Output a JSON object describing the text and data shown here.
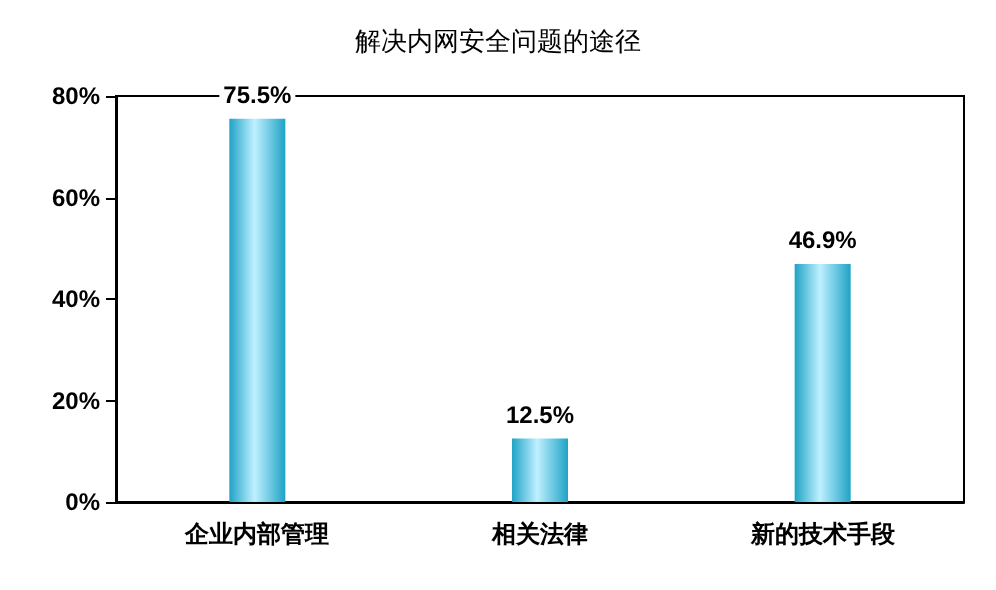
{
  "chart_data": {
    "type": "bar",
    "title": "解决内网安全问题的途径",
    "categories": [
      "企业内部管理",
      "相关法律",
      "新的技术手段"
    ],
    "values": [
      75.5,
      12.5,
      46.9
    ],
    "value_labels": [
      "75.5%",
      "12.5%",
      "46.9%"
    ],
    "color": "#1fa3c6",
    "ylim": [
      0,
      80
    ],
    "yticks": [
      {
        "value": 0,
        "label": "0%"
      },
      {
        "value": 20,
        "label": "20%"
      },
      {
        "value": 40,
        "label": "40%"
      },
      {
        "value": 60,
        "label": "60%"
      },
      {
        "value": 80,
        "label": "80%"
      }
    ],
    "grid": false
  }
}
